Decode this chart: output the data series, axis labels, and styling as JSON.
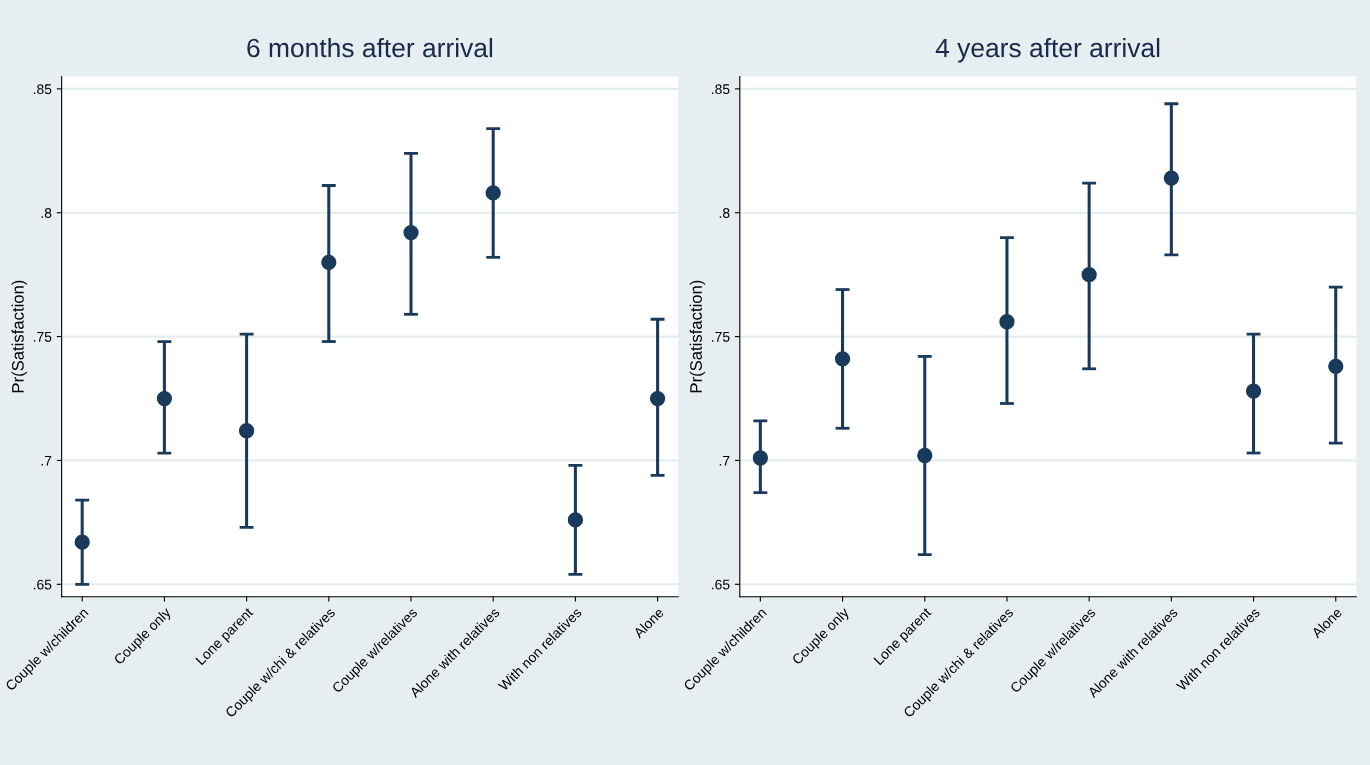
{
  "chart_data": [
    {
      "type": "scatter",
      "title": "6 months after arrival",
      "ylabel": "Pr(Satisfaction)",
      "categories": [
        "Couple w/children",
        "Couple only",
        "Lone parent",
        "Couple w/chi & relatives",
        "Couple w/relatives",
        "Alone with relatives",
        "With non relatives",
        "Alone"
      ],
      "series": [
        {
          "color": "#1a3a5c",
          "values": [
            0.667,
            0.725,
            0.712,
            0.78,
            0.792,
            0.808,
            0.676,
            0.725
          ],
          "errors": [
            [
              0.65,
              0.684
            ],
            [
              0.703,
              0.748
            ],
            [
              0.673,
              0.751
            ],
            [
              0.748,
              0.811
            ],
            [
              0.759,
              0.824
            ],
            [
              0.782,
              0.834
            ],
            [
              0.654,
              0.698
            ],
            [
              0.694,
              0.757
            ]
          ]
        }
      ],
      "ylim": [
        0.645,
        0.855
      ],
      "yticks": [
        {
          "value": 0.65,
          "label": ".65"
        },
        {
          "value": 0.7,
          "label": ".7"
        },
        {
          "value": 0.75,
          "label": ".75"
        },
        {
          "value": 0.8,
          "label": ".8"
        },
        {
          "value": 0.85,
          "label": ".85"
        }
      ],
      "grid": "y",
      "marker": "circle"
    },
    {
      "type": "scatter",
      "title": "4 years after arrival",
      "ylabel": "Pr(Satisfaction)",
      "categories": [
        "Couple w/children",
        "Couple only",
        "Lone parent",
        "Couple w/chi & relatives",
        "Couple w/relatives",
        "Alone with relatives",
        "With non relatives",
        "Alone"
      ],
      "series": [
        {
          "color": "#1a3a5c",
          "values": [
            0.701,
            0.741,
            0.702,
            0.756,
            0.775,
            0.814,
            0.728,
            0.738
          ],
          "errors": [
            [
              0.687,
              0.716
            ],
            [
              0.713,
              0.769
            ],
            [
              0.662,
              0.742
            ],
            [
              0.723,
              0.79
            ],
            [
              0.737,
              0.812
            ],
            [
              0.783,
              0.844
            ],
            [
              0.703,
              0.751
            ],
            [
              0.707,
              0.77
            ]
          ]
        }
      ],
      "ylim": [
        0.645,
        0.855
      ],
      "yticks": [
        {
          "value": 0.65,
          "label": ".65"
        },
        {
          "value": 0.7,
          "label": ".7"
        },
        {
          "value": 0.75,
          "label": ".75"
        },
        {
          "value": 0.8,
          "label": ".8"
        },
        {
          "value": 0.85,
          "label": ".85"
        }
      ],
      "grid": "y",
      "marker": "circle"
    }
  ]
}
